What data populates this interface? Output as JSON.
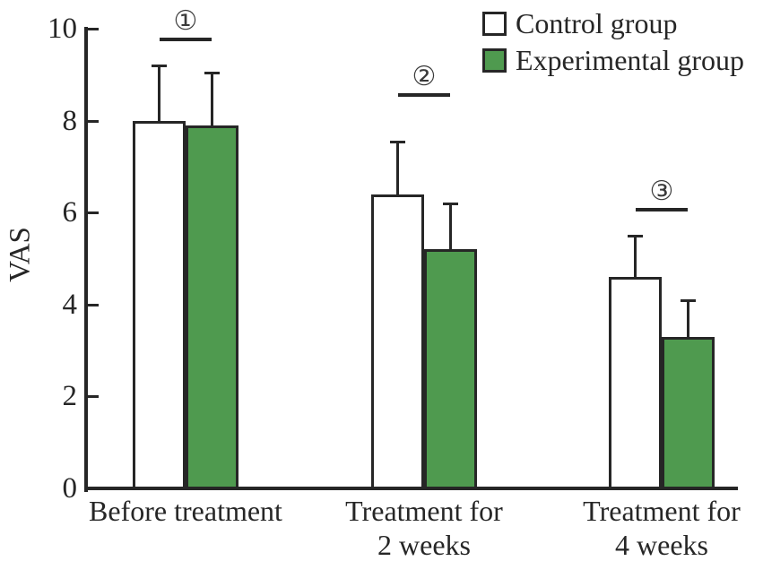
{
  "figure": {
    "background": "#ffffff",
    "ink_color": "#262626"
  },
  "chart_data": {
    "type": "bar",
    "title": "",
    "xlabel": "",
    "ylabel": "VAS",
    "ylim": [
      0,
      10
    ],
    "yticks": [
      0,
      2,
      4,
      6,
      8,
      10
    ],
    "grid": false,
    "legend_position": "top-right",
    "categories": [
      "Before treatment",
      "Treatment for\n2 weeks",
      "Treatment for\n4 weeks"
    ],
    "series": [
      {
        "name": "Control group",
        "fill": "#ffffff",
        "values": [
          8.0,
          6.4,
          4.6
        ],
        "errors_plus": [
          1.2,
          1.15,
          0.9
        ]
      },
      {
        "name": "Experimental group",
        "fill": "#4f9a4f",
        "values": [
          7.9,
          5.2,
          3.3
        ],
        "errors_plus": [
          1.15,
          1.0,
          0.8
        ]
      }
    ],
    "annotations": [
      {
        "label": "①",
        "group_index": 0,
        "line_value": 9.8
      },
      {
        "label": "②",
        "group_index": 1,
        "line_value": 8.6
      },
      {
        "label": "③",
        "group_index": 2,
        "line_value": 6.1
      }
    ]
  }
}
